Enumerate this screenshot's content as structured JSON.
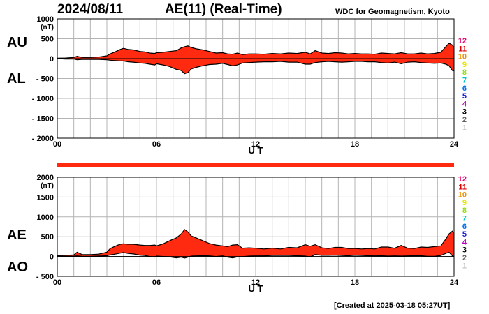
{
  "header": {
    "date": "2024/08/11",
    "title": "AE(11) (Real-Time)",
    "source": "WDC for Geomagnetism, Kyoto"
  },
  "footer": {
    "created": "[Created at 2025-03-18 05:27UT]"
  },
  "colors": {
    "fill": "#ff2a10",
    "line": "#000000",
    "grid": "#b4b4b4"
  },
  "month_legend": {
    "labels": [
      "12",
      "11",
      "10",
      "9",
      "8",
      "7",
      "6",
      "5",
      "4",
      "3",
      "2",
      "1"
    ],
    "colors": [
      "#e8006e",
      "#e00000",
      "#f09000",
      "#e8e800",
      "#90e000",
      "#00c8c8",
      "#0070f0",
      "#2020d0",
      "#c000c0",
      "#000000",
      "#606060",
      "#c0c0c0"
    ]
  },
  "chart_data": [
    {
      "type": "area",
      "panel": "top",
      "side_labels": [
        "AU",
        "AL"
      ],
      "y_unit": "(nT)",
      "ylim": [
        -2000,
        1000
      ],
      "yticks": [
        1000,
        500,
        0,
        -500,
        -1000,
        -1500,
        -2000
      ],
      "ytick_labels": [
        "1000",
        "500",
        "0",
        "- 500",
        "- 1000",
        "- 1500",
        "- 2000"
      ],
      "xlim": [
        0,
        24
      ],
      "xticks": [
        0,
        6,
        12,
        18,
        24
      ],
      "xtick_labels": [
        "00",
        "06",
        "12",
        "18",
        "24"
      ],
      "xlabel": "U T",
      "grid": true,
      "x": [
        0,
        0.5,
        1,
        1.2,
        1.5,
        2,
        2.5,
        3,
        3.2,
        3.5,
        3.8,
        4,
        4.3,
        4.6,
        5,
        5.3,
        5.6,
        5.9,
        6,
        6.4,
        6.8,
        7.2,
        7.5,
        7.7,
        7.9,
        8.1,
        8.4,
        8.8,
        9.2,
        9.6,
        10,
        10.3,
        10.6,
        10.9,
        11.2,
        11.6,
        12,
        12.5,
        13,
        13.5,
        14,
        14.5,
        15,
        15.3,
        15.6,
        16,
        16.4,
        16.8,
        17.2,
        17.6,
        18,
        18.4,
        18.8,
        19.2,
        19.6,
        20,
        20.4,
        20.8,
        21.2,
        21.6,
        22,
        22.4,
        22.8,
        23.2,
        23.5,
        23.7,
        23.9,
        24
      ],
      "series": [
        {
          "name": "AU",
          "values": [
            10,
            15,
            30,
            60,
            30,
            30,
            40,
            70,
            120,
            170,
            230,
            260,
            230,
            220,
            180,
            170,
            140,
            130,
            150,
            160,
            180,
            200,
            270,
            300,
            320,
            280,
            250,
            220,
            180,
            140,
            150,
            120,
            110,
            140,
            100,
            120,
            120,
            110,
            130,
            120,
            140,
            130,
            160,
            120,
            200,
            140,
            130,
            150,
            140,
            120,
            130,
            120,
            120,
            110,
            140,
            130,
            120,
            150,
            120,
            120,
            140,
            120,
            130,
            160,
            300,
            390,
            340,
            280
          ]
        },
        {
          "name": "AL",
          "values": [
            0,
            -10,
            -10,
            -30,
            -20,
            -20,
            -20,
            -30,
            -40,
            -50,
            -60,
            -60,
            -80,
            -90,
            -110,
            -120,
            -140,
            -160,
            -130,
            -160,
            -200,
            -270,
            -300,
            -380,
            -350,
            -260,
            -220,
            -180,
            -150,
            -140,
            -120,
            -150,
            -180,
            -160,
            -110,
            -100,
            -90,
            -80,
            -80,
            -70,
            -90,
            -90,
            -140,
            -140,
            -100,
            -80,
            -70,
            -80,
            -90,
            -80,
            -70,
            -70,
            -80,
            -80,
            -100,
            -110,
            -90,
            -130,
            -90,
            -80,
            -100,
            -110,
            -120,
            -110,
            -140,
            -180,
            -300,
            -310
          ]
        }
      ]
    },
    {
      "type": "area",
      "panel": "bottom",
      "side_labels": [
        "AE",
        "AO"
      ],
      "y_unit": "(nT)",
      "ylim": [
        -500,
        2000
      ],
      "yticks": [
        2000,
        1500,
        1000,
        500,
        0,
        -500
      ],
      "ytick_labels": [
        "2000",
        "1500",
        "1000",
        "500",
        "0",
        "- 500"
      ],
      "xlim": [
        0,
        24
      ],
      "xticks": [
        0,
        6,
        12,
        18,
        24
      ],
      "xtick_labels": [
        "00",
        "06",
        "12",
        "18",
        "24"
      ],
      "xlabel": "U T",
      "grid": true,
      "x": [
        0,
        0.5,
        1,
        1.2,
        1.5,
        2,
        2.5,
        3,
        3.2,
        3.5,
        3.8,
        4,
        4.3,
        4.6,
        5,
        5.3,
        5.6,
        5.9,
        6,
        6.4,
        6.8,
        7.2,
        7.5,
        7.7,
        7.9,
        8.1,
        8.4,
        8.8,
        9.2,
        9.6,
        10,
        10.3,
        10.6,
        10.9,
        11.2,
        11.6,
        12,
        12.5,
        13,
        13.5,
        14,
        14.5,
        15,
        15.3,
        15.6,
        16,
        16.4,
        16.8,
        17.2,
        17.6,
        18,
        18.4,
        18.8,
        19.2,
        19.6,
        20,
        20.4,
        20.8,
        21.2,
        21.6,
        22,
        22.4,
        22.8,
        23.2,
        23.5,
        23.7,
        23.9,
        24
      ],
      "series": [
        {
          "name": "AE",
          "values": [
            20,
            30,
            40,
            110,
            50,
            50,
            60,
            110,
            200,
            260,
            310,
            320,
            310,
            310,
            290,
            280,
            280,
            290,
            270,
            320,
            400,
            470,
            570,
            680,
            620,
            520,
            470,
            400,
            330,
            290,
            270,
            250,
            290,
            300,
            210,
            220,
            210,
            190,
            210,
            190,
            230,
            220,
            300,
            260,
            300,
            220,
            200,
            230,
            230,
            200,
            200,
            190,
            200,
            190,
            240,
            240,
            210,
            280,
            210,
            200,
            240,
            230,
            250,
            270,
            440,
            570,
            640,
            590
          ]
        },
        {
          "name": "AO",
          "values": [
            5,
            3,
            10,
            15,
            5,
            5,
            10,
            20,
            40,
            60,
            85,
            100,
            75,
            65,
            35,
            25,
            0,
            -15,
            10,
            0,
            -10,
            -35,
            -15,
            -40,
            -15,
            10,
            15,
            20,
            15,
            0,
            15,
            -15,
            -35,
            -10,
            -5,
            10,
            15,
            15,
            25,
            25,
            25,
            20,
            10,
            -10,
            50,
            30,
            30,
            35,
            25,
            20,
            30,
            25,
            20,
            15,
            20,
            10,
            15,
            10,
            15,
            20,
            20,
            5,
            5,
            25,
            80,
            105,
            20,
            -15
          ]
        }
      ]
    }
  ]
}
